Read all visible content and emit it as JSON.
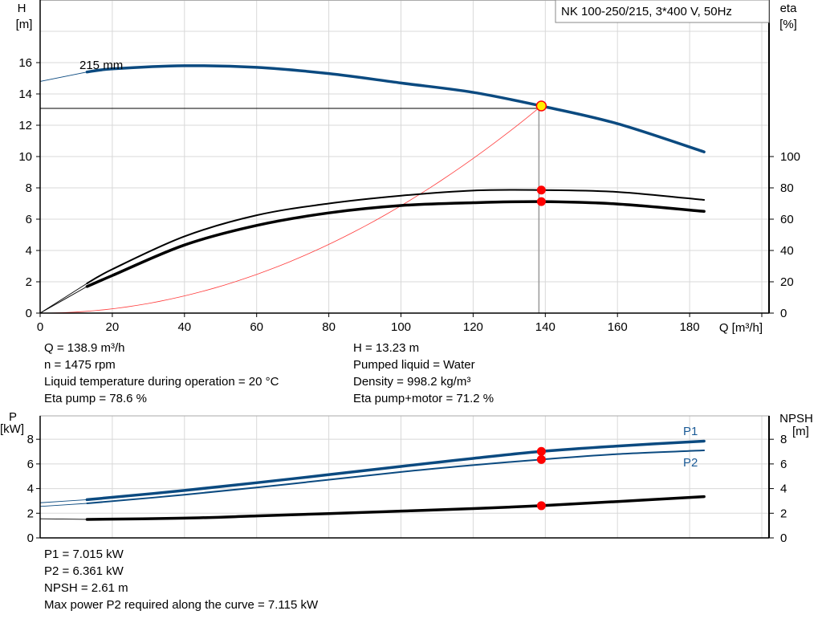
{
  "chart_data": [
    {
      "type": "line",
      "legend_box": "NK 100-250/215, 3*400 V, 50Hz",
      "xlabel": "Q [m³/h]",
      "ylabel_left": [
        "H",
        "[m]"
      ],
      "ylabel_right": [
        "eta",
        "[%]"
      ],
      "xlim": [
        0,
        202
      ],
      "ylim_left": [
        0,
        20
      ],
      "ylim_right": [
        0,
        200
      ],
      "x_ticks": [
        "0",
        "20",
        "40",
        "60",
        "80",
        "100",
        "120",
        "140",
        "160",
        "180"
      ],
      "y_ticks_left": [
        "0",
        "2",
        "4",
        "6",
        "8",
        "10",
        "12",
        "14",
        "16"
      ],
      "y_ticks_right": [
        "0",
        "20",
        "40",
        "60",
        "80",
        "100"
      ],
      "grid": true,
      "curve_label": "215 mm",
      "series": [
        {
          "key": "H",
          "axis": "left",
          "color": "#0b4a80",
          "points": [
            [
              0,
              14.8
            ],
            [
              13,
              15.4
            ],
            [
              20,
              15.6
            ],
            [
              40,
              15.8
            ],
            [
              60,
              15.7
            ],
            [
              80,
              15.3
            ],
            [
              100,
              14.7
            ],
            [
              120,
              14.1
            ],
            [
              138.9,
              13.23
            ],
            [
              160,
              12.1
            ],
            [
              184,
              10.3
            ]
          ]
        },
        {
          "key": "eta_pump",
          "axis": "right",
          "color": "#000000",
          "points": [
            [
              0,
              0
            ],
            [
              13,
              19
            ],
            [
              20,
              28
            ],
            [
              40,
              49
            ],
            [
              60,
              62.5
            ],
            [
              80,
              70
            ],
            [
              100,
              75
            ],
            [
              120,
              78.3
            ],
            [
              138.9,
              78.6
            ],
            [
              160,
              77.4
            ],
            [
              184,
              72.3
            ]
          ]
        },
        {
          "key": "eta_pump_motor",
          "axis": "right",
          "color": "#000000",
          "points": [
            [
              0,
              0
            ],
            [
              13,
              17
            ],
            [
              20,
              24
            ],
            [
              40,
              43.5
            ],
            [
              60,
              56
            ],
            [
              80,
              64
            ],
            [
              100,
              68.7
            ],
            [
              120,
              70.5
            ],
            [
              138.9,
              71.2
            ],
            [
              160,
              69.7
            ],
            [
              184,
              65
            ]
          ]
        },
        {
          "key": "system",
          "axis": "left",
          "color": "#ff3b3b",
          "quadratic_through": [
            138.9,
            13.23
          ]
        }
      ],
      "operating_point": {
        "Q": 138.9,
        "H": 13.23,
        "eta_pump": 78.6,
        "eta_pump_motor": 71.2
      }
    },
    {
      "type": "line",
      "xlim": [
        0,
        202
      ],
      "ylabel_left": [
        "P",
        "[kW]"
      ],
      "ylabel_right": [
        "NPSH",
        "[m]"
      ],
      "ylim_left": [
        0,
        9.9
      ],
      "ylim_right": [
        0,
        9.9
      ],
      "y_ticks_left": [
        "0",
        "2",
        "4",
        "6",
        "8"
      ],
      "y_ticks_right": [
        "0",
        "2",
        "4",
        "6",
        "8"
      ],
      "grid": true,
      "series": [
        {
          "key": "P1",
          "name": "P1",
          "color": "#0b4a80",
          "points": [
            [
              0,
              2.85
            ],
            [
              13,
              3.1
            ],
            [
              40,
              3.85
            ],
            [
              70,
              4.8
            ],
            [
              100,
              5.8
            ],
            [
              120,
              6.45
            ],
            [
              138.9,
              7.015
            ],
            [
              160,
              7.45
            ],
            [
              184,
              7.85
            ]
          ]
        },
        {
          "key": "P2",
          "name": "P2",
          "color": "#0b4a80",
          "points": [
            [
              0,
              2.55
            ],
            [
              13,
              2.8
            ],
            [
              40,
              3.5
            ],
            [
              70,
              4.4
            ],
            [
              100,
              5.35
            ],
            [
              120,
              5.9
            ],
            [
              138.9,
              6.361
            ],
            [
              160,
              6.8
            ],
            [
              184,
              7.1
            ]
          ]
        },
        {
          "key": "NPSH",
          "color": "#000000",
          "points": [
            [
              0,
              1.55
            ],
            [
              13,
              1.5
            ],
            [
              40,
              1.6
            ],
            [
              60,
              1.78
            ],
            [
              80,
              1.97
            ],
            [
              100,
              2.17
            ],
            [
              120,
              2.38
            ],
            [
              138.9,
              2.61
            ],
            [
              160,
              2.95
            ],
            [
              184,
              3.35
            ]
          ]
        }
      ],
      "operating_point": {
        "Q": 138.9,
        "P1": 7.015,
        "P2": 6.361,
        "NPSH": 2.61
      }
    }
  ],
  "info_top": {
    "left": [
      "Q = 138.9 m³/h",
      "n = 1475 rpm",
      "Liquid temperature during operation = 20 °C",
      "Eta pump = 78.6 %"
    ],
    "right": [
      "H = 13.23 m",
      "Pumped liquid = Water",
      "Density = 998.2 kg/m³",
      "Eta pump+motor = 71.2 %"
    ]
  },
  "info_bottom": [
    "P1 = 7.015 kW",
    "P2 = 6.361 kW",
    "NPSH = 2.61 m",
    "Max power P2 required along the curve = 7.115 kW"
  ]
}
